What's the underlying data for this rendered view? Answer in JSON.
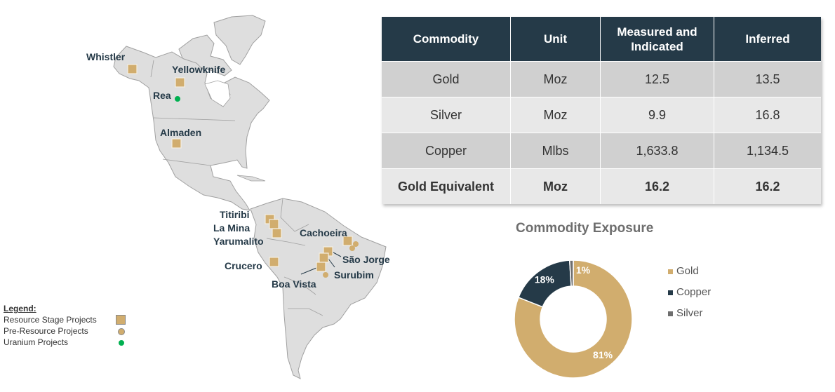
{
  "map": {
    "projects": [
      {
        "name": "Whistler",
        "type": "resource"
      },
      {
        "name": "Yellowknife",
        "type": "resource"
      },
      {
        "name": "Rea",
        "type": "uranium"
      },
      {
        "name": "Almaden",
        "type": "resource"
      },
      {
        "name": "Titiribi",
        "type": "resource"
      },
      {
        "name": "La Mina",
        "type": "resource"
      },
      {
        "name": "Yarumalito",
        "type": "resource"
      },
      {
        "name": "Cachoeira",
        "type": "resource"
      },
      {
        "name": "São Jorge",
        "type": "resource"
      },
      {
        "name": "Surubim",
        "type": "resource"
      },
      {
        "name": "Boa Vista",
        "type": "resource"
      },
      {
        "name": "Crucero",
        "type": "resource"
      }
    ],
    "legend": {
      "title": "Legend:",
      "items": [
        "Resource Stage Projects",
        "Pre-Resource Projects",
        "Uranium Projects"
      ]
    },
    "colors": {
      "land": "#dedede",
      "border": "#a0a0a0",
      "resource": "#d1ad6e",
      "uranium": "#00b050"
    }
  },
  "table": {
    "headers": [
      "Commodity",
      "Unit",
      "Measured and Indicated",
      "Inferred"
    ],
    "rows": [
      [
        "Gold",
        "Moz",
        "12.5",
        "13.5"
      ],
      [
        "Silver",
        "Moz",
        "9.9",
        "16.8"
      ],
      [
        "Copper",
        "Mlbs",
        "1,633.8",
        "1,134.5"
      ],
      [
        "Gold Equivalent",
        "Moz",
        "16.2",
        "16.2"
      ]
    ]
  },
  "chart_data": {
    "type": "pie",
    "title": "Commodity Exposure",
    "donut": true,
    "categories": [
      "Gold",
      "Copper",
      "Silver"
    ],
    "values": [
      81,
      18,
      1
    ],
    "labels": [
      "81%",
      "18%",
      "1%"
    ],
    "colors": [
      "#d1ad6e",
      "#253a48",
      "#6e6e6e"
    ],
    "legend": "right"
  }
}
